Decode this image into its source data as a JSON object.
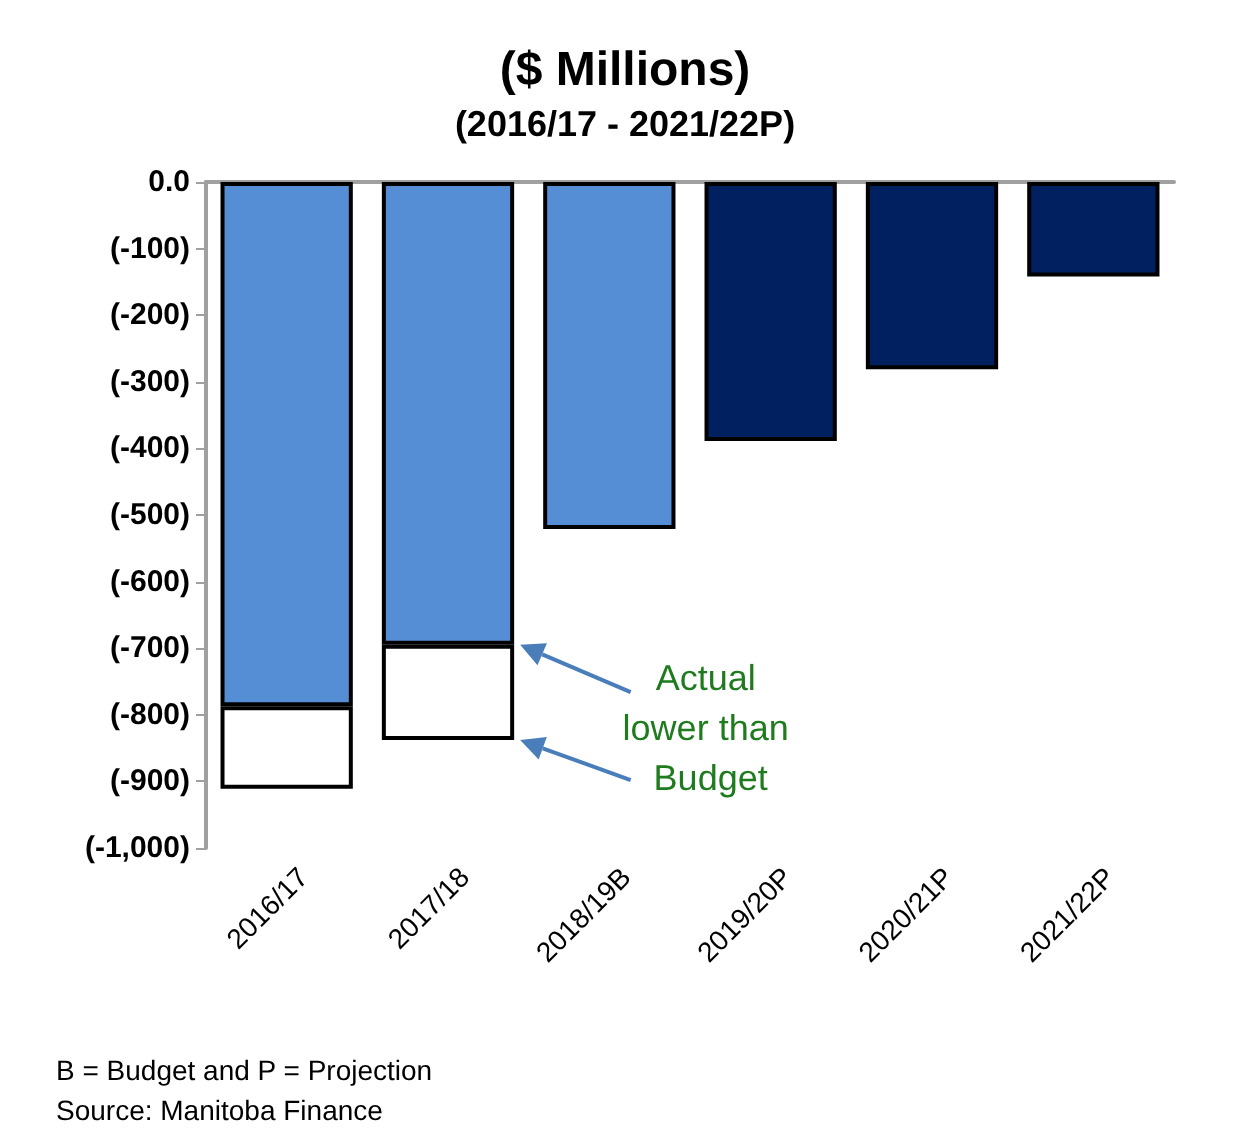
{
  "chart_data": {
    "type": "bar",
    "title": "($ Millions)",
    "subtitle": "(2016/17 - 2021/22P)",
    "categories": [
      "2016/17",
      "2017/18",
      "2018/19B",
      "2019/20P",
      "2020/21P",
      "2021/22P"
    ],
    "stacked": true,
    "series": [
      {
        "colors": [
          "#558ed5",
          "#558ed5",
          "#558ed5",
          "#002060",
          "#002060",
          "#002060"
        ],
        "values": [
          -787,
          -695,
          -521,
          -389,
          -281,
          -142
        ]
      },
      {
        "color": "#ffffff",
        "values": [
          -124,
          -143,
          null,
          null,
          null,
          null
        ]
      }
    ],
    "ylim": [
      -1000,
      0
    ],
    "yticks": [
      {
        "value": 0,
        "label": "0.0"
      },
      {
        "value": -100,
        "label": "(-100)"
      },
      {
        "value": -200,
        "label": "(-200)"
      },
      {
        "value": -300,
        "label": "(-300)"
      },
      {
        "value": -400,
        "label": "(-400)"
      },
      {
        "value": -500,
        "label": "(-500)"
      },
      {
        "value": -600,
        "label": "(-600)"
      },
      {
        "value": -700,
        "label": "(-700)"
      },
      {
        "value": -800,
        "label": "(-800)"
      },
      {
        "value": -900,
        "label": "(-900)"
      },
      {
        "value": -1000,
        "label": "(-1,000)"
      }
    ],
    "grid": false,
    "annotations": [
      "Actual lower than Budget",
      "B = Budget and P = Projection",
      "Source: Manitoba Finance"
    ]
  }
}
